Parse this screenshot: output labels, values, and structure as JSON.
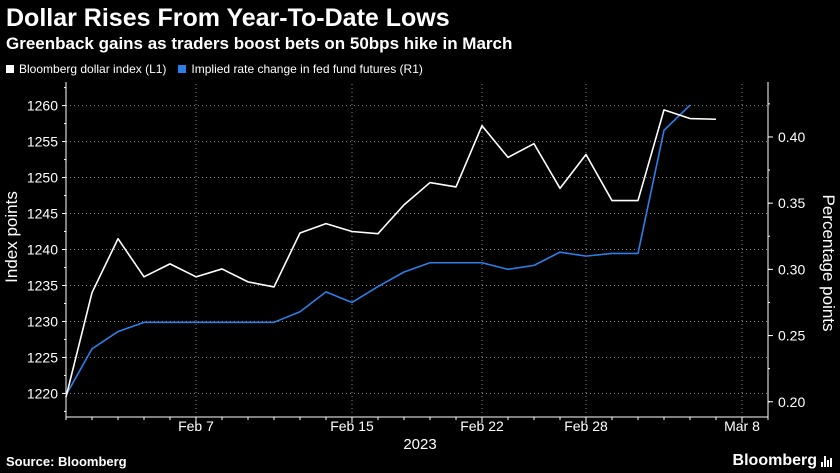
{
  "header": {
    "title": "Dollar Rises From Year-To-Date Lows",
    "subtitle": "Greenback gains as traders boost bets on 50bps hike in March"
  },
  "footer": {
    "source": "Source: Bloomberg",
    "brand": "Bloomberg"
  },
  "colors": {
    "background": "#000000",
    "dollar_line": "#ffffff",
    "rate_line": "#2b7fe6",
    "grid": "#8a8a8a"
  },
  "chart_data": {
    "type": "line",
    "x": [
      "2023-01-31",
      "2023-02-01",
      "2023-02-02",
      "2023-02-03",
      "2023-02-06",
      "2023-02-07",
      "2023-02-08",
      "2023-02-09",
      "2023-02-10",
      "2023-02-13",
      "2023-02-14",
      "2023-02-15",
      "2023-02-16",
      "2023-02-17",
      "2023-02-20",
      "2023-02-21",
      "2023-02-22",
      "2023-02-23",
      "2023-02-24",
      "2023-02-27",
      "2023-02-28",
      "2023-03-01",
      "2023-03-02",
      "2023-03-03",
      "2023-03-06",
      "2023-03-07",
      "2023-03-08",
      "2023-03-09"
    ],
    "xticks": [
      {
        "index": 5,
        "label": "Feb 7"
      },
      {
        "index": 11,
        "label": "Feb 15"
      },
      {
        "index": 16,
        "label": "Feb 22"
      },
      {
        "index": 20,
        "label": "Feb 28"
      },
      {
        "index": 26,
        "label": "Mar 8"
      }
    ],
    "xlabel": "2023",
    "series": [
      {
        "name": "Bloomberg dollar index (L1)",
        "axis": "left",
        "color": "#ffffff",
        "values": [
          1219.5,
          1234,
          1241.5,
          1236.2,
          1238,
          1236.2,
          1237.3,
          1235.5,
          1234.8,
          1242.3,
          1243.6,
          1242.5,
          1242.2,
          1246.2,
          1249.3,
          1248.7,
          1257.2,
          1252.8,
          1254.7,
          1248.5,
          1253.2,
          1246.8,
          1246.8,
          1259.4,
          1258.2,
          1258.1,
          null,
          null
        ]
      },
      {
        "name": "Implied rate change in fed fund futures (R1)",
        "axis": "right",
        "color": "#2b7fe6",
        "values": [
          0.205,
          0.24,
          0.253,
          0.26,
          0.26,
          0.26,
          0.26,
          0.26,
          0.26,
          0.268,
          0.283,
          0.275,
          0.287,
          0.298,
          0.305,
          0.305,
          0.305,
          0.3,
          0.303,
          0.313,
          0.31,
          0.312,
          0.312,
          0.405,
          0.424,
          null,
          null,
          null
        ]
      }
    ],
    "ylabel": "Index points",
    "y2label": "Percentage points",
    "ylim": [
      1217,
      1263
    ],
    "y2lim": [
      0.19,
      0.44
    ],
    "yticks": [
      1220,
      1225,
      1230,
      1235,
      1240,
      1245,
      1250,
      1255,
      1260
    ],
    "y2ticks": [
      "0.20",
      "0.25",
      "0.30",
      "0.35",
      "0.40"
    ],
    "grid": true,
    "legend_position": "top-left"
  }
}
